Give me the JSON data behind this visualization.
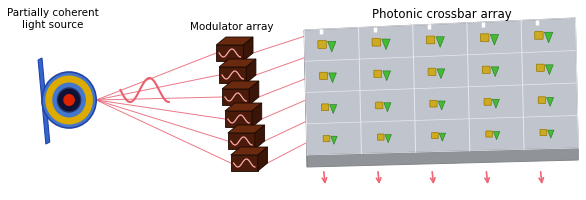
{
  "title": "Photonic crossbar array",
  "label_light_source": "Partially coherent\nlight source",
  "label_modulator": "Modulator array",
  "background_color": "#ffffff",
  "beam_color": "#e86070",
  "modulator_color": "#4a1a0a",
  "modulator_top_color": "#6a2a10",
  "chip_face_color": "#c0c4cc",
  "chip_side_color": "#a0a4aa",
  "chip_bottom_color": "#909498",
  "chip_edge_color": "#808488",
  "green_color": "#44bb33",
  "gold_color": "#ccaa22",
  "waveguide_color": "#e8e8f0",
  "arrow_color": "#ee6677",
  "num_modulators": 6,
  "num_rows": 4,
  "num_cols": 5,
  "label_fontsize": 7.5,
  "title_fontsize": 8.5
}
